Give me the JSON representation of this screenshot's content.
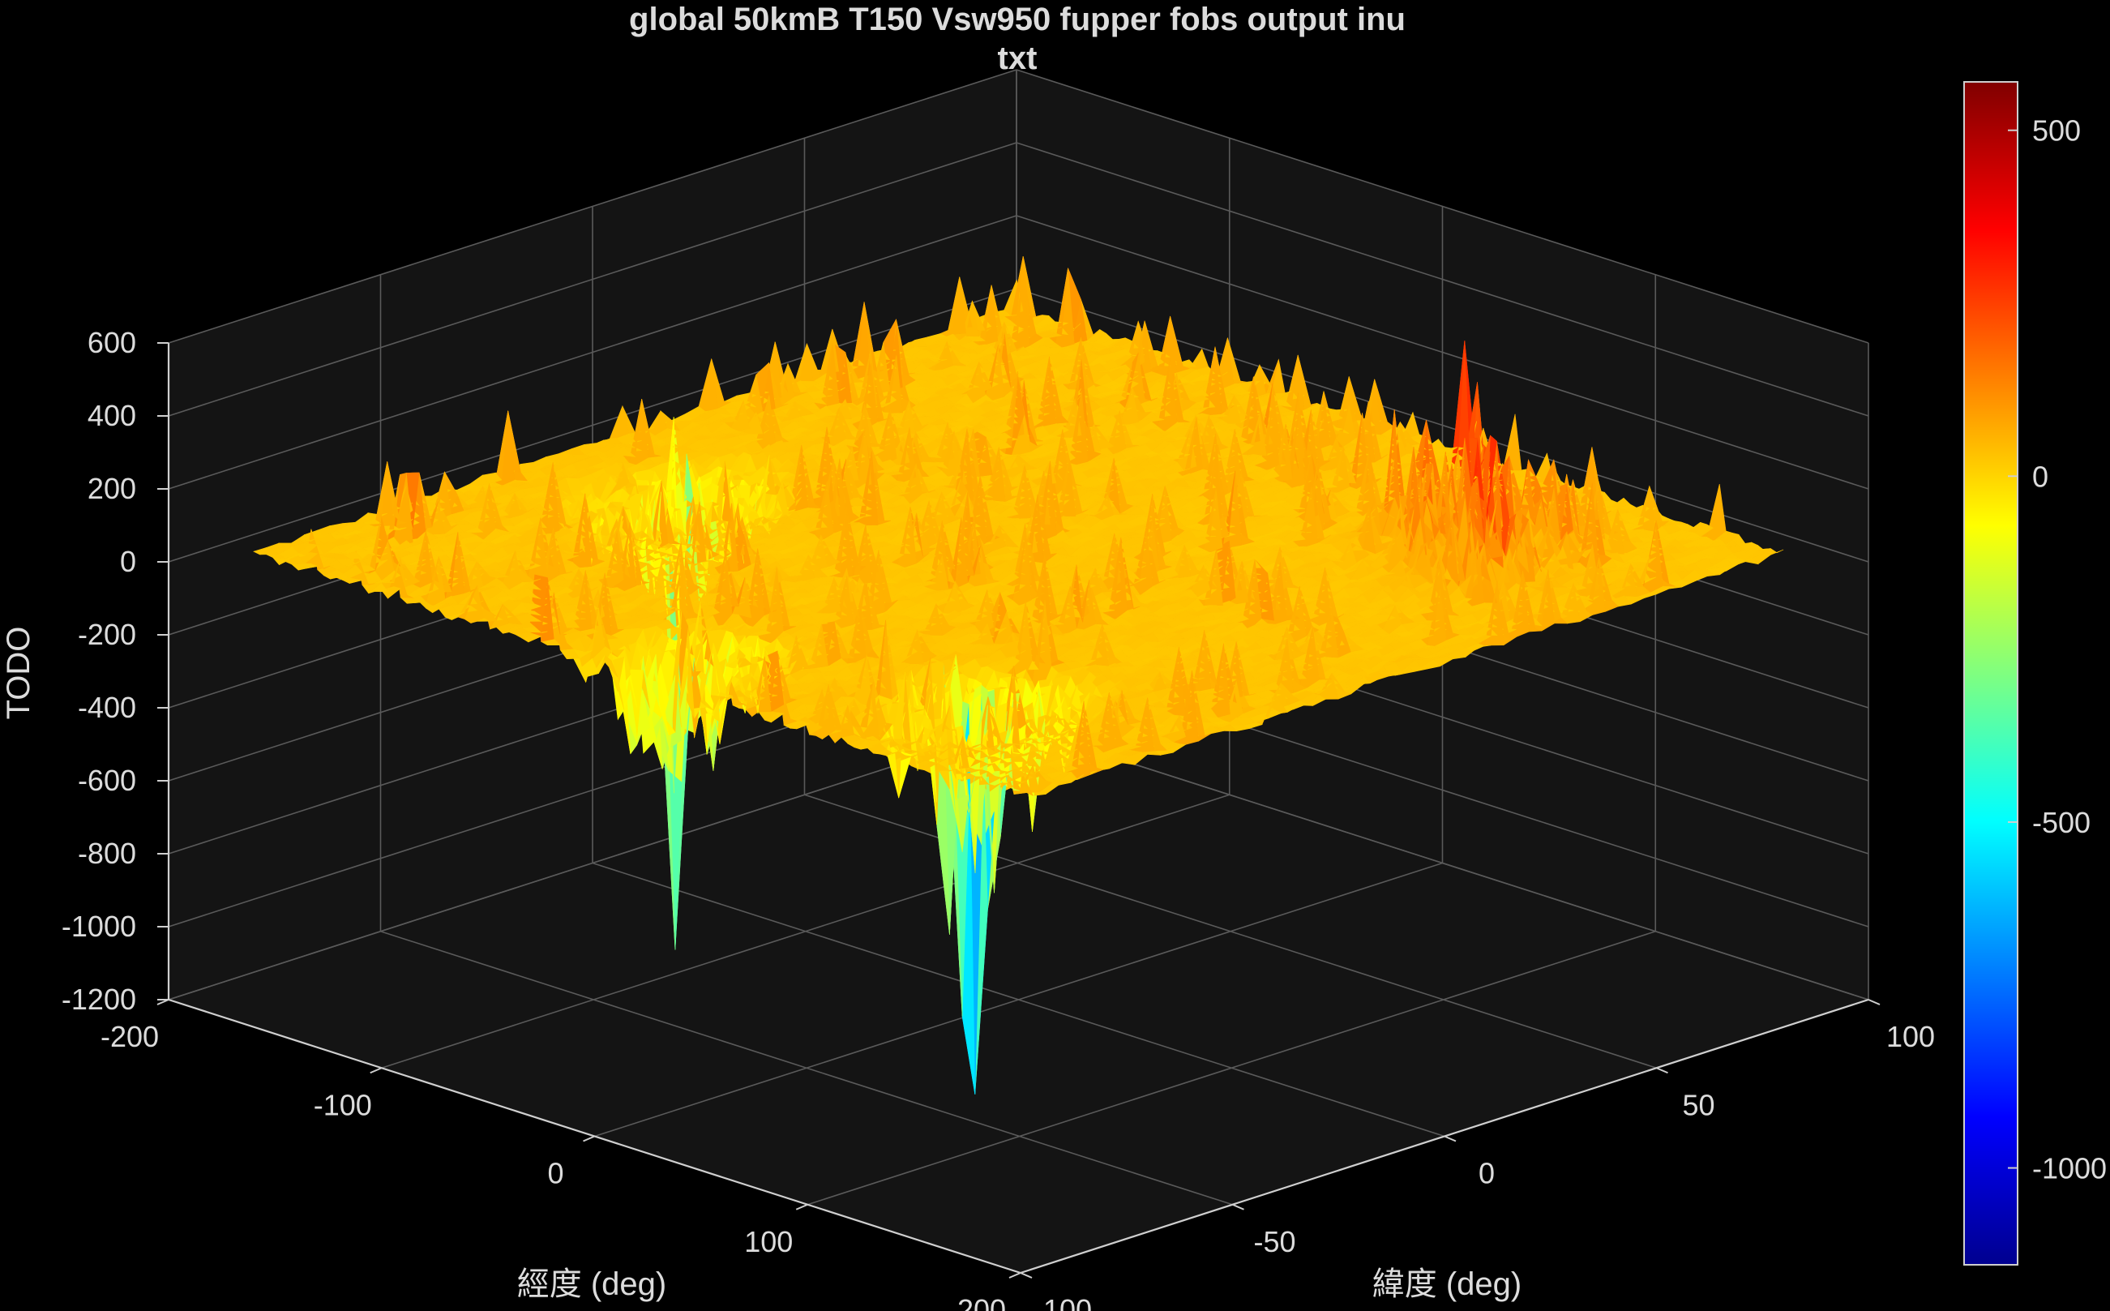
{
  "chart_data": {
    "type": "surface",
    "title_lines": [
      "global 50kmB T150 Vsw950 fupper fobs output inu",
      "txt"
    ],
    "xlabel": "經度 (deg)",
    "ylabel": "緯度 (deg)",
    "zlabel": "TODO",
    "xlim": [
      -200,
      200
    ],
    "ylim": [
      -100,
      100
    ],
    "zlim": [
      -1200,
      600
    ],
    "x_ticks": [
      "-200",
      "-100",
      "0",
      "100",
      "200"
    ],
    "y_ticks": [
      "-100",
      "-50",
      "0",
      "50",
      "100"
    ],
    "z_ticks": [
      "600",
      "400",
      "200",
      "0",
      "-200",
      "-400",
      "-600",
      "-800",
      "-1000",
      "-1200"
    ],
    "grid": true,
    "colormap": "jet",
    "colorbar": {
      "location": "right",
      "limits": [
        -1140,
        570
      ],
      "ticks": [
        "500",
        "0",
        "-500",
        "-1000"
      ]
    },
    "surface": {
      "x_range": [
        -180,
        180
      ],
      "y_range": [
        -90,
        90
      ],
      "baseline_z": 0,
      "extremes": [
        {
          "x": 90,
          "y": 60,
          "z": 550
        },
        {
          "x": 120,
          "y": 50,
          "z": 380
        },
        {
          "x": 100,
          "y": -60,
          "z": -1050
        },
        {
          "x": -120,
          "y": -20,
          "z": -780
        },
        {
          "x": 0,
          "y": -80,
          "z": -760
        }
      ]
    }
  },
  "colors": {
    "background": "#000000",
    "axes_background": "#141414",
    "grid": "#5a5a5a",
    "text": "#dcdcdc"
  }
}
